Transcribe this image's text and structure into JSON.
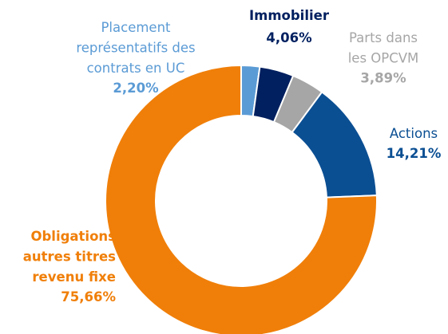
{
  "chart_data": {
    "type": "donut",
    "categories": [
      "Placement\nreprésentatifs des\ncontrats en UC",
      "Immobilier",
      "Parts dans\nles OPCVM",
      "Actions",
      "Obligations\nautres titres\nrevenu fixe"
    ],
    "values": [
      2.2,
      4.06,
      3.89,
      14.21,
      75.66
    ],
    "value_labels": [
      "2,20%",
      "4,06%",
      "3,89%",
      "14,21%",
      "75,66%"
    ],
    "colors": [
      "#5b9bd5",
      "#002060",
      "#a6a6a6",
      "#0b4f93",
      "#f07f09"
    ]
  }
}
